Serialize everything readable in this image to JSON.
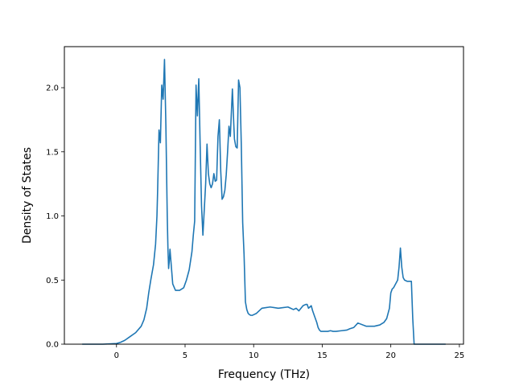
{
  "chart_data": {
    "type": "line",
    "title": "",
    "xlabel": "Frequency (THz)",
    "ylabel": "Density of States",
    "xlim": [
      -3.8,
      25.3
    ],
    "ylim": [
      0.0,
      2.32
    ],
    "xticks": [
      0,
      5,
      10,
      15,
      20,
      25
    ],
    "xtick_labels": [
      "0",
      "5",
      "10",
      "15",
      "20",
      "25"
    ],
    "yticks": [
      0.0,
      0.5,
      1.0,
      1.5,
      2.0
    ],
    "ytick_labels": [
      "0.0",
      "0.5",
      "1.0",
      "1.5",
      "2.0"
    ],
    "grid": false,
    "legend": "none",
    "series": [
      {
        "color": "#1f77b4",
        "x": [
          -2.5,
          -1.0,
          0.0,
          0.3,
          0.6,
          1.0,
          1.4,
          1.8,
          2.0,
          2.2,
          2.35,
          2.5,
          2.7,
          2.85,
          2.95,
          3.0,
          3.1,
          3.2,
          3.3,
          3.4,
          3.5,
          3.6,
          3.7,
          3.75,
          3.8,
          3.85,
          3.9,
          4.1,
          4.3,
          4.6,
          4.9,
          5.1,
          5.3,
          5.5,
          5.6,
          5.7,
          5.8,
          5.9,
          6.0,
          6.1,
          6.2,
          6.3,
          6.4,
          6.5,
          6.6,
          6.7,
          6.8,
          6.9,
          7.0,
          7.1,
          7.2,
          7.3,
          7.4,
          7.5,
          7.6,
          7.7,
          7.8,
          7.9,
          8.0,
          8.1,
          8.2,
          8.3,
          8.45,
          8.55,
          8.6,
          8.7,
          8.8,
          8.9,
          9.0,
          9.1,
          9.2,
          9.3,
          9.4,
          9.5,
          9.6,
          9.7,
          9.8,
          9.9,
          10.0,
          10.2,
          10.6,
          11.2,
          11.8,
          12.5,
          12.9,
          13.1,
          13.3,
          13.6,
          13.8,
          13.9,
          14.0,
          14.1,
          14.2,
          14.3,
          14.5,
          14.6,
          14.7,
          14.8,
          14.9,
          15.0,
          15.2,
          15.4,
          15.6,
          15.8,
          16.0,
          16.4,
          16.8,
          17.0,
          17.3,
          17.6,
          18.2,
          18.8,
          19.2,
          19.35,
          19.5,
          19.7,
          19.9,
          20.0,
          20.1,
          20.2,
          20.3,
          20.5,
          20.6,
          20.7,
          20.8,
          20.9,
          21.0,
          21.2,
          21.5,
          21.6,
          21.7,
          21.8,
          22.0,
          24.0
        ],
        "y": [
          0.0,
          0.0,
          0.005,
          0.015,
          0.03,
          0.06,
          0.09,
          0.14,
          0.19,
          0.28,
          0.4,
          0.5,
          0.62,
          0.78,
          1.0,
          1.2,
          1.67,
          1.57,
          2.02,
          1.91,
          2.22,
          1.71,
          1.0,
          0.75,
          0.59,
          0.65,
          0.74,
          0.47,
          0.42,
          0.42,
          0.44,
          0.5,
          0.58,
          0.72,
          0.85,
          0.96,
          2.02,
          1.78,
          2.07,
          1.55,
          1.08,
          0.85,
          1.05,
          1.25,
          1.56,
          1.33,
          1.25,
          1.22,
          1.25,
          1.33,
          1.27,
          1.28,
          1.62,
          1.75,
          1.35,
          1.13,
          1.15,
          1.2,
          1.32,
          1.5,
          1.7,
          1.62,
          1.99,
          1.72,
          1.6,
          1.54,
          1.53,
          2.06,
          2.0,
          1.55,
          0.95,
          0.7,
          0.33,
          0.27,
          0.24,
          0.23,
          0.225,
          0.225,
          0.23,
          0.24,
          0.28,
          0.29,
          0.28,
          0.29,
          0.27,
          0.28,
          0.26,
          0.3,
          0.31,
          0.31,
          0.28,
          0.29,
          0.3,
          0.26,
          0.2,
          0.17,
          0.13,
          0.11,
          0.1,
          0.1,
          0.1,
          0.1,
          0.105,
          0.1,
          0.1,
          0.105,
          0.11,
          0.12,
          0.13,
          0.165,
          0.14,
          0.14,
          0.15,
          0.16,
          0.17,
          0.2,
          0.28,
          0.4,
          0.43,
          0.44,
          0.46,
          0.5,
          0.6,
          0.75,
          0.6,
          0.52,
          0.5,
          0.49,
          0.49,
          0.2,
          0.0,
          0.0,
          0.0,
          0.0
        ]
      }
    ]
  }
}
